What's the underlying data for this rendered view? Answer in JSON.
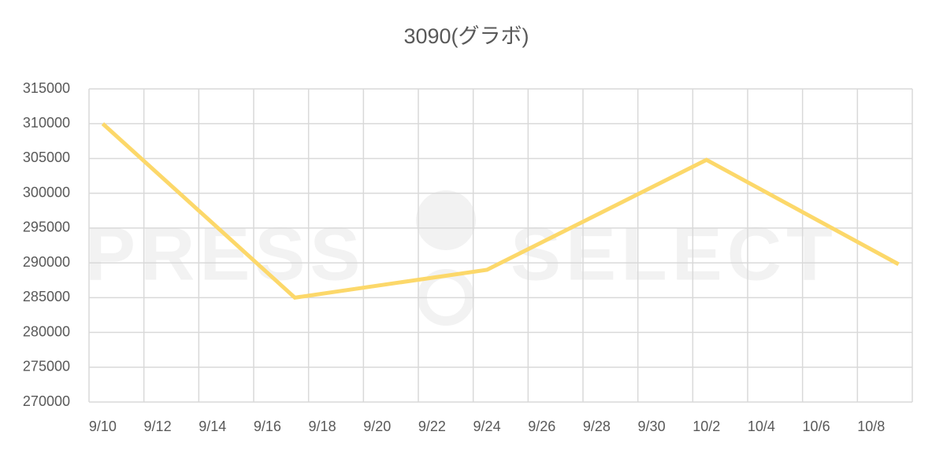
{
  "chart_data": {
    "type": "line",
    "title": "3090(グラボ)",
    "watermark": [
      "PRESS",
      "SELECT"
    ],
    "x": [
      "9/10",
      "9/17",
      "9/24",
      "10/2",
      "10/9"
    ],
    "series": [
      {
        "name": "3090",
        "color": "#fcd86a",
        "values": [
          310000,
          285000,
          289000,
          304800,
          289800
        ]
      }
    ],
    "xlim": [
      "9/10",
      "10/9"
    ],
    "xticks": [
      "9/10",
      "9/12",
      "9/14",
      "9/16",
      "9/18",
      "9/20",
      "9/22",
      "9/24",
      "9/26",
      "9/28",
      "9/30",
      "10/2",
      "10/4",
      "10/6",
      "10/8"
    ],
    "ylim": [
      270000,
      315000
    ],
    "yticks": [
      270000,
      275000,
      280000,
      285000,
      290000,
      295000,
      300000,
      305000,
      310000,
      315000
    ],
    "grid": true
  }
}
